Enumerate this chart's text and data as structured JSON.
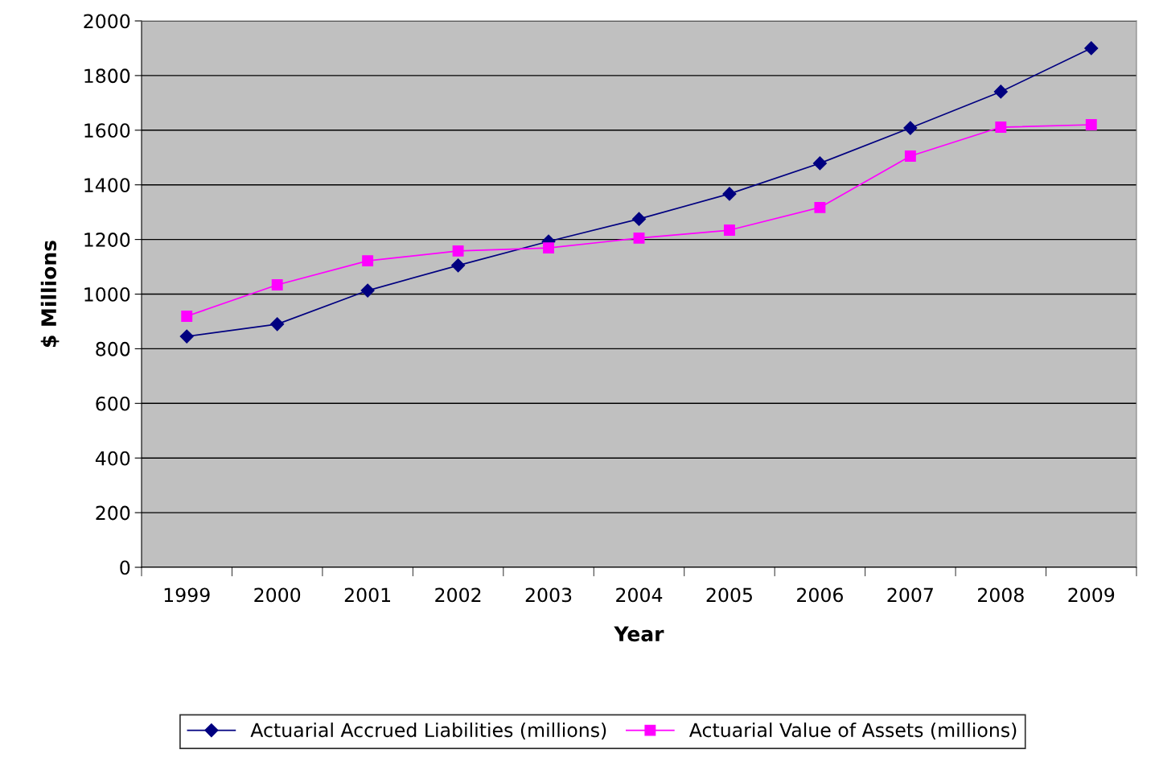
{
  "chart_data": {
    "type": "line",
    "xlabel": "Year",
    "ylabel": "$ Millions",
    "categories": [
      "1999",
      "2000",
      "2001",
      "2002",
      "2003",
      "2004",
      "2005",
      "2006",
      "2007",
      "2008",
      "2009"
    ],
    "series": [
      {
        "name": "Actuarial Accrued Liabilities (millions)",
        "color": "#000080",
        "marker": "diamond",
        "values": [
          845,
          890,
          1013,
          1105,
          1193,
          1275,
          1367,
          1479,
          1608,
          1741,
          1900
        ]
      },
      {
        "name": "Actuarial Value of Assets (millions)",
        "color": "#ff00ff",
        "marker": "square",
        "values": [
          919,
          1034,
          1122,
          1158,
          1169,
          1205,
          1234,
          1317,
          1505,
          1611,
          1620
        ]
      }
    ],
    "ylim": [
      0,
      2000
    ],
    "yticks": [
      0,
      200,
      400,
      600,
      800,
      1000,
      1200,
      1400,
      1600,
      1800,
      2000
    ],
    "grid": "y",
    "legend": "bottom",
    "line_style": "solid"
  }
}
